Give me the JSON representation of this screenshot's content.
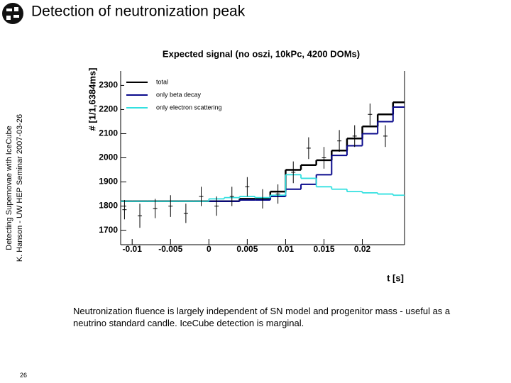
{
  "slide": {
    "title": "Detection of neutronization peak",
    "sidebar": [
      "Detecting Supernovae with IceCube",
      "K. Hanson - UW HEP Seminar 2007-03-26"
    ],
    "caption": "Neutronization fluence is largely independent of SN model and progenitor mass - useful as a neutrino standard candle.  IceCube detection is marginal.",
    "page_number": "26"
  },
  "chart_data": {
    "type": "histogram",
    "title": "Expected signal (no oszi, 10kPc, 4200 DOMs)",
    "x_label": "t [s]",
    "y_label": "# [1/1,6384ms]",
    "bins": [
      -0.012,
      -0.01,
      -0.008,
      -0.006,
      -0.004,
      -0.002,
      0,
      0.002,
      0.004,
      0.006,
      0.008,
      0.01,
      0.012,
      0.014,
      0.016,
      0.018,
      0.02,
      0.022,
      0.024,
      0.026
    ],
    "series": [
      {
        "name": "total",
        "color": "#000000",
        "values": [
          1820,
          1820,
          1820,
          1820,
          1820,
          1820,
          1820,
          1820,
          1830,
          1830,
          1860,
          1950,
          1970,
          1990,
          2030,
          2080,
          2130,
          2180,
          2230
        ]
      },
      {
        "name": "only beta decay",
        "color": "#0a0a8c",
        "values": [
          null,
          null,
          null,
          null,
          null,
          null,
          1820,
          1820,
          1825,
          1825,
          1840,
          1870,
          1890,
          1930,
          2010,
          2050,
          2100,
          2150,
          2210
        ]
      },
      {
        "name": "only electron scattering",
        "color": "#33e0e0",
        "values": [
          1820,
          1820,
          1820,
          1820,
          1820,
          1820,
          1830,
          1835,
          1840,
          1835,
          1845,
          1930,
          1915,
          1880,
          1870,
          1860,
          1855,
          1850,
          1845
        ]
      }
    ],
    "points": {
      "color": "#000000",
      "x": [
        -0.011,
        -0.009,
        -0.007,
        -0.005,
        -0.003,
        -0.001,
        0.001,
        0.003,
        0.005,
        0.007,
        0.009,
        0.011,
        0.013,
        0.015,
        0.017,
        0.019,
        0.021,
        0.023
      ],
      "values": [
        1785,
        1760,
        1790,
        1800,
        1770,
        1840,
        1800,
        1840,
        1880,
        1830,
        1850,
        1940,
        2040,
        2000,
        2070,
        2090,
        2180,
        2090
      ],
      "errors": [
        40,
        50,
        40,
        45,
        40,
        40,
        40,
        40,
        40,
        40,
        40,
        45,
        45,
        45,
        45,
        45,
        45,
        45
      ]
    },
    "xlim": [
      -0.0115,
      0.0255
    ],
    "ylim": [
      1640,
      2360
    ],
    "xticks": [
      -0.01,
      -0.005,
      0,
      0.005,
      0.01,
      0.015,
      0.02
    ],
    "yticks": [
      1700,
      1800,
      1900,
      2000,
      2100,
      2200,
      2300
    ],
    "legend": "top-left"
  }
}
